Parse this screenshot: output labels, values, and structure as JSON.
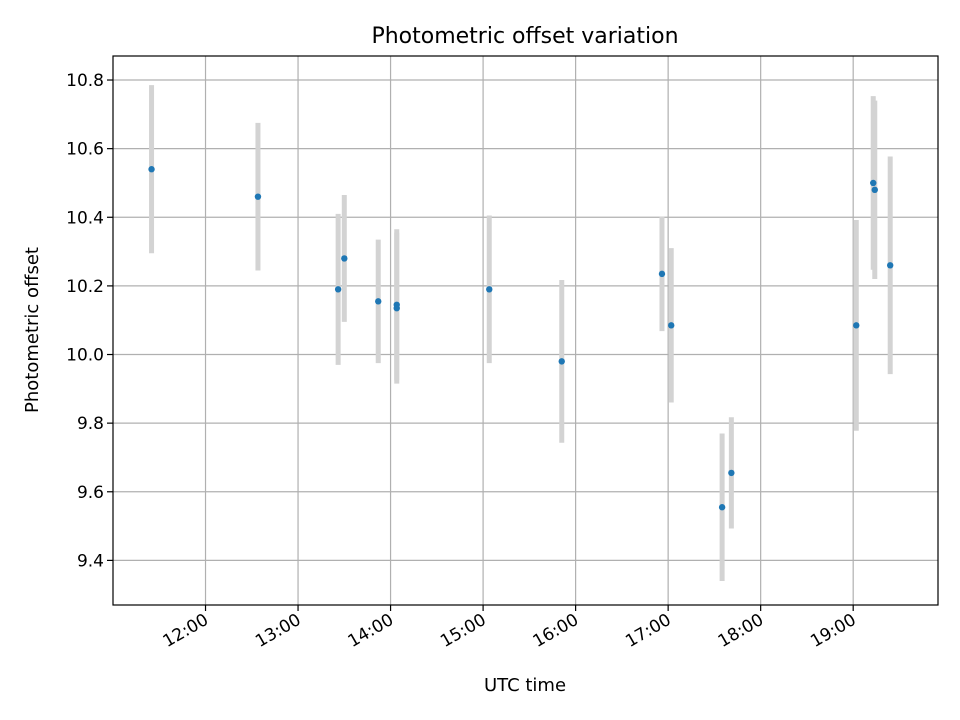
{
  "chart_data": {
    "type": "scatter",
    "title": "Photometric offset variation",
    "xlabel": "UTC time",
    "ylabel": "Photometric offset",
    "x_ticks": [
      "12:00",
      "13:00",
      "14:00",
      "15:00",
      "16:00",
      "17:00",
      "18:00",
      "19:00"
    ],
    "y_ticks": [
      "9.4",
      "9.6",
      "9.8",
      "10.0",
      "10.2",
      "10.4",
      "10.6",
      "10.8"
    ],
    "xlim": [
      "11:00",
      "19:55"
    ],
    "ylim": [
      9.27,
      10.87
    ],
    "grid": true,
    "point_color": "#1f77b4",
    "errorbar_color": "#d3d3d3",
    "points": [
      {
        "time": "11:25",
        "y": 10.54,
        "err": 0.245
      },
      {
        "time": "12:34",
        "y": 10.46,
        "err": 0.215
      },
      {
        "time": "13:26",
        "y": 10.19,
        "err": 0.22
      },
      {
        "time": "13:30",
        "y": 10.28,
        "err": 0.185
      },
      {
        "time": "13:52",
        "y": 10.155,
        "err": 0.18
      },
      {
        "time": "14:04",
        "y": 10.145,
        "err": 0.22
      },
      {
        "time": "14:04",
        "y": 10.135,
        "err": 0.22
      },
      {
        "time": "15:04",
        "y": 10.19,
        "err": 0.215
      },
      {
        "time": "15:51",
        "y": 9.98,
        "err": 0.237
      },
      {
        "time": "16:56",
        "y": 10.235,
        "err": 0.167
      },
      {
        "time": "17:02",
        "y": 10.085,
        "err": 0.225
      },
      {
        "time": "17:35",
        "y": 9.555,
        "err": 0.215
      },
      {
        "time": "17:41",
        "y": 9.655,
        "err": 0.162
      },
      {
        "time": "19:02",
        "y": 10.085,
        "err": 0.307
      },
      {
        "time": "19:13",
        "y": 10.5,
        "err": 0.253
      },
      {
        "time": "19:14",
        "y": 10.48,
        "err": 0.26
      },
      {
        "time": "19:24",
        "y": 10.26,
        "err": 0.317
      }
    ]
  }
}
